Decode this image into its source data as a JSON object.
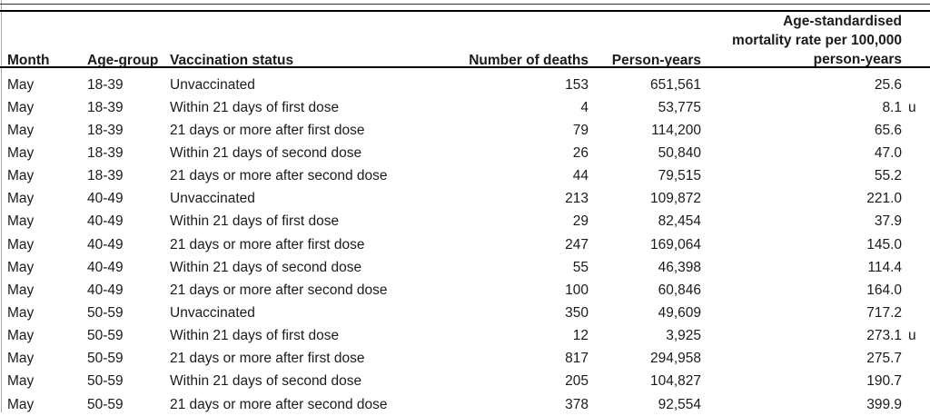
{
  "table": {
    "header": {
      "month": "Month",
      "age_group": "Age-group",
      "vaccination_status": "Vaccination status",
      "deaths": "Number of deaths",
      "person_years": "Person-years",
      "rate_lines": [
        "Age-standardised",
        "mortality rate per 100,000",
        "person-years"
      ]
    },
    "rows": [
      {
        "month": "May",
        "age_group": "18-39",
        "status": "Unvaccinated",
        "deaths": "153",
        "person_years": "651,561",
        "rate": "25.6",
        "flag": ""
      },
      {
        "month": "May",
        "age_group": "18-39",
        "status": "Within 21 days of first dose",
        "deaths": "4",
        "person_years": "53,775",
        "rate": "8.1",
        "flag": "u"
      },
      {
        "month": "May",
        "age_group": "18-39",
        "status": "21 days or more after first dose",
        "deaths": "79",
        "person_years": "114,200",
        "rate": "65.6",
        "flag": ""
      },
      {
        "month": "May",
        "age_group": "18-39",
        "status": "Within 21 days of second dose",
        "deaths": "26",
        "person_years": "50,840",
        "rate": "47.0",
        "flag": ""
      },
      {
        "month": "May",
        "age_group": "18-39",
        "status": "21 days or more after second dose",
        "deaths": "44",
        "person_years": "79,515",
        "rate": "55.2",
        "flag": ""
      },
      {
        "month": "May",
        "age_group": "40-49",
        "status": "Unvaccinated",
        "deaths": "213",
        "person_years": "109,872",
        "rate": "221.0",
        "flag": ""
      },
      {
        "month": "May",
        "age_group": "40-49",
        "status": "Within 21 days of first dose",
        "deaths": "29",
        "person_years": "82,454",
        "rate": "37.9",
        "flag": ""
      },
      {
        "month": "May",
        "age_group": "40-49",
        "status": "21 days or more after first dose",
        "deaths": "247",
        "person_years": "169,064",
        "rate": "145.0",
        "flag": ""
      },
      {
        "month": "May",
        "age_group": "40-49",
        "status": "Within 21 days of second dose",
        "deaths": "55",
        "person_years": "46,398",
        "rate": "114.4",
        "flag": ""
      },
      {
        "month": "May",
        "age_group": "40-49",
        "status": "21 days or more after second dose",
        "deaths": "100",
        "person_years": "60,846",
        "rate": "164.0",
        "flag": ""
      },
      {
        "month": "May",
        "age_group": "50-59",
        "status": "Unvaccinated",
        "deaths": "350",
        "person_years": "49,609",
        "rate": "717.2",
        "flag": ""
      },
      {
        "month": "May",
        "age_group": "50-59",
        "status": "Within 21 days of first dose",
        "deaths": "12",
        "person_years": "3,925",
        "rate": "273.1",
        "flag": "u"
      },
      {
        "month": "May",
        "age_group": "50-59",
        "status": "21 days or more after first dose",
        "deaths": "817",
        "person_years": "294,958",
        "rate": "275.7",
        "flag": ""
      },
      {
        "month": "May",
        "age_group": "50-59",
        "status": "Within 21 days of second dose",
        "deaths": "205",
        "person_years": "104,827",
        "rate": "190.7",
        "flag": ""
      },
      {
        "month": "May",
        "age_group": "50-59",
        "status": "21 days or more after second dose",
        "deaths": "378",
        "person_years": "92,554",
        "rate": "399.9",
        "flag": ""
      }
    ]
  }
}
